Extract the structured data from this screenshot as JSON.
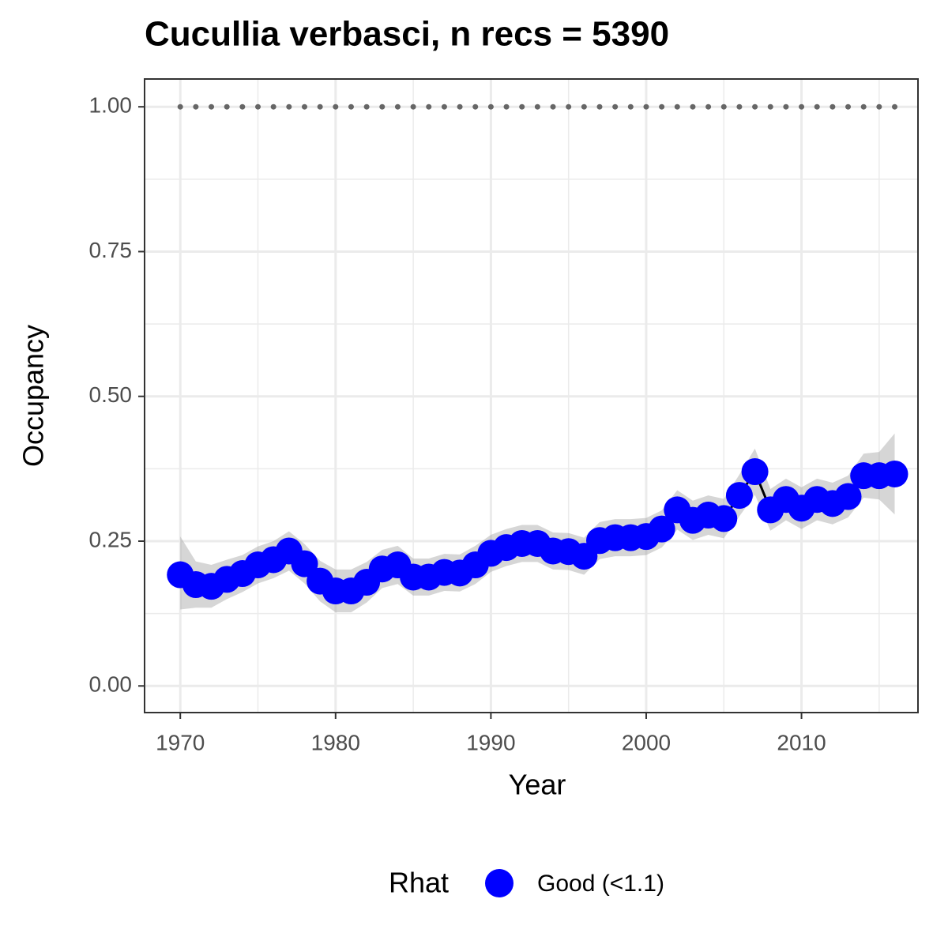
{
  "chart_data": {
    "type": "line",
    "title": "Cucullia verbasci, n recs = 5390",
    "x_label": "Year",
    "y_label": "Occupancy",
    "legend_title": "Rhat",
    "x": [
      1970,
      1971,
      1972,
      1973,
      1974,
      1975,
      1976,
      1977,
      1978,
      1979,
      1980,
      1981,
      1982,
      1983,
      1984,
      1985,
      1986,
      1987,
      1988,
      1989,
      1990,
      1991,
      1992,
      1993,
      1994,
      1995,
      1996,
      1997,
      1998,
      1999,
      2000,
      2001,
      2002,
      2003,
      2004,
      2005,
      2006,
      2007,
      2008,
      2009,
      2010,
      2011,
      2012,
      2013,
      2014,
      2015,
      2016
    ],
    "series": [
      {
        "name": "Good (<1.1)",
        "color": "#0000ff",
        "line_color": "#000000",
        "band_color": "#999999",
        "values": [
          0.192,
          0.175,
          0.172,
          0.184,
          0.194,
          0.209,
          0.218,
          0.233,
          0.211,
          0.181,
          0.164,
          0.164,
          0.179,
          0.202,
          0.209,
          0.188,
          0.188,
          0.196,
          0.195,
          0.209,
          0.229,
          0.239,
          0.246,
          0.246,
          0.233,
          0.232,
          0.224,
          0.251,
          0.256,
          0.256,
          0.258,
          0.271,
          0.304,
          0.286,
          0.295,
          0.289,
          0.329,
          0.37,
          0.304,
          0.322,
          0.307,
          0.322,
          0.315,
          0.327,
          0.363,
          0.363,
          0.366
        ],
        "lower": [
          0.132,
          0.135,
          0.135,
          0.15,
          0.162,
          0.177,
          0.186,
          0.199,
          0.177,
          0.146,
          0.127,
          0.127,
          0.144,
          0.169,
          0.176,
          0.156,
          0.156,
          0.164,
          0.163,
          0.176,
          0.197,
          0.207,
          0.214,
          0.214,
          0.201,
          0.2,
          0.192,
          0.219,
          0.224,
          0.224,
          0.226,
          0.239,
          0.27,
          0.252,
          0.261,
          0.255,
          0.293,
          0.33,
          0.268,
          0.286,
          0.271,
          0.286,
          0.279,
          0.291,
          0.325,
          0.322,
          0.296
        ],
        "upper": [
          0.258,
          0.215,
          0.209,
          0.218,
          0.226,
          0.241,
          0.25,
          0.267,
          0.245,
          0.216,
          0.201,
          0.201,
          0.214,
          0.235,
          0.242,
          0.22,
          0.22,
          0.228,
          0.227,
          0.242,
          0.261,
          0.271,
          0.278,
          0.278,
          0.265,
          0.264,
          0.256,
          0.283,
          0.288,
          0.288,
          0.29,
          0.303,
          0.338,
          0.32,
          0.329,
          0.323,
          0.365,
          0.41,
          0.34,
          0.358,
          0.343,
          0.358,
          0.351,
          0.363,
          0.401,
          0.404,
          0.436
        ]
      }
    ],
    "reference_line": {
      "value": 1,
      "color": "#666666"
    },
    "xlim": [
      1967.7,
      2017.5
    ],
    "ylim": [
      -0.046,
      1.048
    ],
    "xticks": [
      1970,
      1980,
      1990,
      2000,
      2010
    ],
    "x_minor_ticks": [
      1975,
      1985,
      1995,
      2005,
      2015
    ],
    "yticks": [
      {
        "value": 0,
        "label": "0.00"
      },
      {
        "value": 0.25,
        "label": "0.25"
      },
      {
        "value": 0.5,
        "label": "0.50"
      },
      {
        "value": 0.75,
        "label": "0.75"
      },
      {
        "value": 1,
        "label": "1.00"
      }
    ],
    "y_minor_ticks": [
      0.125,
      0.375,
      0.625,
      0.875
    ],
    "grid": true
  }
}
